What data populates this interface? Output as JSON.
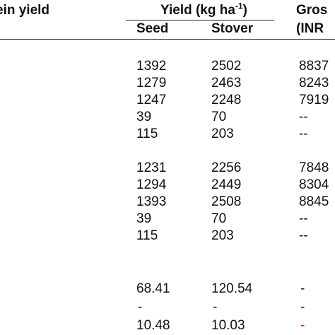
{
  "header": {
    "protein_yield_label": "ein yield",
    "yield_label_prefix": "Yield (kg ha",
    "yield_label_sup": "-1",
    "yield_label_suffix": ")",
    "gross_label": "Gros",
    "seed_label": "Seed",
    "stover_label": "Stover",
    "inr_label": "(INR"
  },
  "groups": [
    {
      "rows": [
        {
          "seed": "1392",
          "stover": "2502",
          "gross": "8837"
        },
        {
          "seed": "1279",
          "stover": "2463",
          "gross": "8243"
        },
        {
          "seed": "1247",
          "stover": "2248",
          "gross": "7919"
        },
        {
          "seed": "39",
          "stover": "70",
          "gross": "--"
        },
        {
          "seed": "115",
          "stover": "203",
          "gross": "--"
        }
      ]
    },
    {
      "rows": [
        {
          "seed": "1231",
          "stover": "2256",
          "gross": "7848"
        },
        {
          "seed": "1294",
          "stover": "2449",
          "gross": "8304"
        },
        {
          "seed": "1393",
          "stover": "2508",
          "gross": "8845"
        },
        {
          "seed": "39",
          "stover": "70",
          "gross": "--"
        },
        {
          "seed": "115",
          "stover": "203",
          "gross": "--"
        }
      ]
    },
    {
      "rows": [
        {
          "seed": "68.41",
          "stover": "120.54",
          "gross": "-"
        },
        {
          "seed": "-",
          "stover": "-",
          "gross": "-"
        },
        {
          "seed": "10.48",
          "stover": "10.03",
          "gross": "-"
        }
      ]
    }
  ],
  "colors": {
    "text": "#111111",
    "rule": "#222222",
    "red_dash": "#cc2222"
  }
}
